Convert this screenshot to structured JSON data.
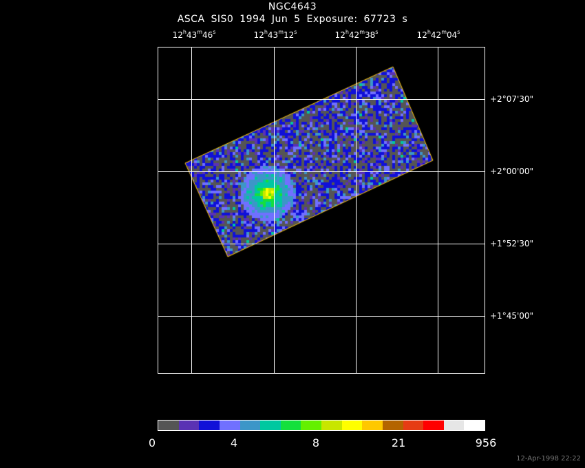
{
  "title": "NGC4643",
  "subtitle": "ASCA SIS0   1994 Jun  5    Exposure: 67723 s",
  "ra_ticks": [
    {
      "h": "12",
      "m": "43",
      "s": "46"
    },
    {
      "h": "12",
      "m": "43",
      "s": "12"
    },
    {
      "h": "12",
      "m": "42",
      "s": "38"
    },
    {
      "h": "12",
      "m": "42",
      "s": "04"
    }
  ],
  "dec_ticks": [
    "+2°07'30\"",
    "+2°00'00\"",
    "+1°52'30\"",
    "+1°45'00\""
  ],
  "colorbar": {
    "colors": [
      "#555555",
      "#5a32b4",
      "#1010d8",
      "#7070ff",
      "#3c96c8",
      "#00c8a0",
      "#14e03c",
      "#64f000",
      "#c8e600",
      "#ffff00",
      "#ffc800",
      "#b46400",
      "#e63c14",
      "#ff0000",
      "#e6e6e6",
      "#ffffff"
    ],
    "labels": [
      "0",
      "4",
      "8",
      "21",
      "956"
    ]
  },
  "timestamp": "12-Apr-1998 22:22"
}
